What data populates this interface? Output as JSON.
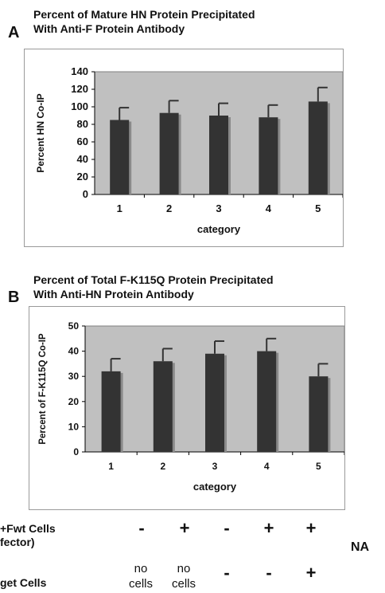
{
  "panels": [
    {
      "letter": "A",
      "title_line1": "Percent of Mature HN Protein Precipitated",
      "title_line2": "With Anti-F Protein Antibody"
    },
    {
      "letter": "B",
      "title_line1": "Percent of Total F-K115Q Protein Precipitated",
      "title_line2": "With Anti-HN Protein Antibody"
    }
  ],
  "chart_data": [
    {
      "type": "bar",
      "categories": [
        "1",
        "2",
        "3",
        "4",
        "5"
      ],
      "values": [
        85,
        93,
        90,
        88,
        106
      ],
      "error_upper": [
        99,
        107,
        104,
        102,
        122
      ],
      "ylabel": "Percent HN Co-IP",
      "xlabel": "category",
      "ylim": [
        0,
        140
      ],
      "yticks": [
        0,
        20,
        40,
        60,
        80,
        100,
        120,
        140
      ],
      "plot_area_color": "#c0c0c0",
      "bar_color": "#333333",
      "grid": false
    },
    {
      "type": "bar",
      "categories": [
        "1",
        "2",
        "3",
        "4",
        "5"
      ],
      "values": [
        32,
        36,
        39,
        40,
        30
      ],
      "error_upper": [
        37,
        41,
        44,
        45,
        35
      ],
      "ylabel": "Percent of F-K115Q  Co-IP",
      "xlabel": "category",
      "ylim": [
        0,
        50
      ],
      "yticks": [
        0,
        10,
        20,
        30,
        40,
        50
      ],
      "plot_area_color": "#c0c0c0",
      "bar_color": "#333333",
      "grid": false
    }
  ],
  "table": {
    "effector_label_line1": "+Fwt Cells",
    "effector_label_line2": "fector)",
    "target_label": "get Cells",
    "effector_values": [
      "-",
      "+",
      "-",
      "+",
      "+"
    ],
    "target_values": [
      {
        "line1": "no",
        "line2": "cells"
      },
      {
        "line1": "no",
        "line2": "cells"
      },
      {
        "line1": "-",
        "line2": ""
      },
      {
        "line1": "-",
        "line2": ""
      },
      {
        "line1": "+",
        "line2": ""
      }
    ],
    "na_label": "NA"
  }
}
